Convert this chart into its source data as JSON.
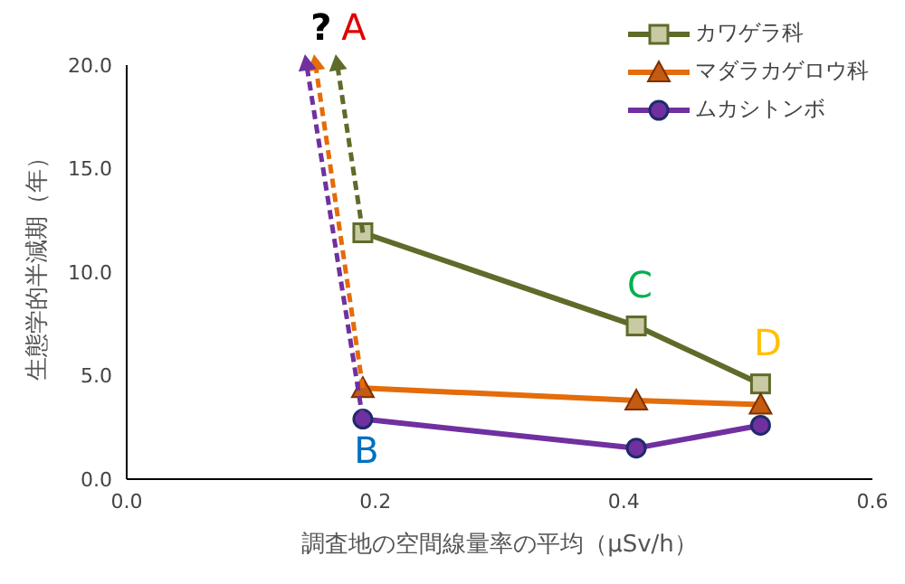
{
  "chart_data": {
    "type": "line",
    "xlabel": "調査地の空間線量率の平均（μSv/h）",
    "ylabel": "生態学的半減期（年）",
    "xlim": [
      0,
      0.6
    ],
    "xticks": [
      {
        "value": 0,
        "label": "0.0"
      },
      0.2,
      0.4,
      0.6
    ],
    "ylim": [
      0,
      20
    ],
    "yticks": [
      {
        "value": 0,
        "label": "0.0"
      },
      {
        "value": 5,
        "label": "5.0"
      },
      {
        "value": 10,
        "label": "10.0"
      },
      {
        "value": 15,
        "label": "15.0"
      },
      {
        "value": 20,
        "label": "20.0"
      }
    ],
    "grid": false,
    "legend": "top right",
    "series": [
      {
        "name": "カワゲラ科",
        "color": "#5f6b2a",
        "marker": "square",
        "x": [
          0.19,
          0.41,
          0.51
        ],
        "values": [
          11.9,
          7.4,
          4.6
        ]
      },
      {
        "name": "マダラカゲロウ科",
        "color": "#e46c0a",
        "marker": "triangle",
        "x": [
          0.19,
          0.41,
          0.51
        ],
        "values": [
          4.4,
          3.8,
          3.6
        ]
      },
      {
        "name": "ムカシトンボ",
        "color": "#7030a0",
        "marker": "circle",
        "x": [
          0.19,
          0.41,
          0.51
        ],
        "values": [
          2.9,
          1.5,
          2.6
        ]
      }
    ],
    "annotations": [
      {
        "text": "?",
        "x": 0.19,
        "y": 2.9
      },
      {
        "text": "A",
        "x": 0.19,
        "y": 11.9
      },
      {
        "text": "B",
        "x": 0.19,
        "y": 2.9
      },
      {
        "text": "C",
        "x": 0.41,
        "y": 7.4
      },
      {
        "text": "D",
        "x": 0.51,
        "y": 4.6
      }
    ]
  }
}
